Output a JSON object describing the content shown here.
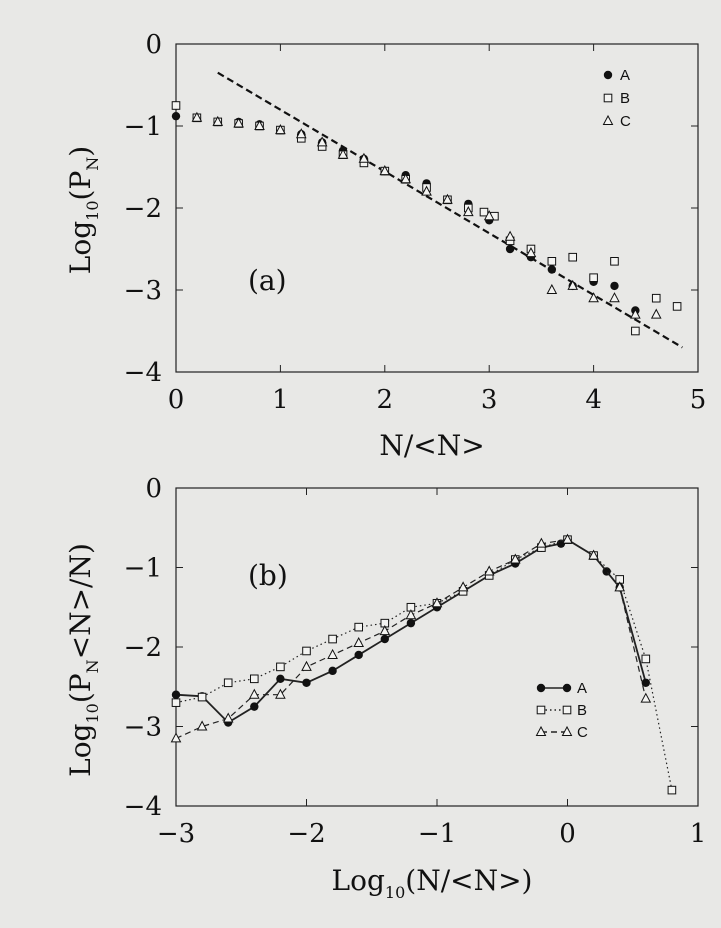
{
  "colors": {
    "background": "#e8e8e6",
    "ink": "#111111"
  },
  "chart_data": [
    {
      "type": "scatter",
      "panel_label": "(a)",
      "xlabel": {
        "main": "N/<N>"
      },
      "ylabel": {
        "pre": "Log",
        "sub1": "10",
        "mid": "(P",
        "sub2": "N",
        "post": ")"
      },
      "xlim": [
        0,
        5
      ],
      "ylim": [
        -4,
        0
      ],
      "xticks": [
        "0",
        "1",
        "2",
        "3",
        "4",
        "5"
      ],
      "yticks": [
        "0",
        "−1",
        "−2",
        "−3",
        "−4"
      ],
      "legend_position": "top-right",
      "series": [
        {
          "name": "A",
          "marker": "circle-filled",
          "points": [
            [
              0,
              -0.88
            ],
            [
              0.2,
              -0.9
            ],
            [
              0.4,
              -0.95
            ],
            [
              0.6,
              -0.95
            ],
            [
              0.8,
              -0.98
            ],
            [
              1.0,
              -1.05
            ],
            [
              1.2,
              -1.1
            ],
            [
              1.4,
              -1.2
            ],
            [
              1.6,
              -1.3
            ],
            [
              1.8,
              -1.4
            ],
            [
              2.0,
              -1.55
            ],
            [
              2.2,
              -1.6
            ],
            [
              2.4,
              -1.7
            ],
            [
              2.6,
              -1.9
            ],
            [
              2.8,
              -1.95
            ],
            [
              3.0,
              -2.15
            ],
            [
              3.2,
              -2.5
            ],
            [
              3.4,
              -2.6
            ],
            [
              3.6,
              -2.75
            ],
            [
              3.8,
              -2.95
            ],
            [
              4.0,
              -2.9
            ],
            [
              4.2,
              -2.95
            ],
            [
              4.4,
              -3.25
            ]
          ]
        },
        {
          "name": "B",
          "marker": "square-open",
          "points": [
            [
              0,
              -0.75
            ],
            [
              0.2,
              -0.9
            ],
            [
              0.4,
              -0.95
            ],
            [
              0.6,
              -0.97
            ],
            [
              0.8,
              -1.0
            ],
            [
              1.0,
              -1.05
            ],
            [
              1.2,
              -1.15
            ],
            [
              1.4,
              -1.25
            ],
            [
              1.6,
              -1.35
            ],
            [
              1.8,
              -1.45
            ],
            [
              2.0,
              -1.55
            ],
            [
              2.2,
              -1.65
            ],
            [
              2.4,
              -1.75
            ],
            [
              2.6,
              -1.9
            ],
            [
              2.8,
              -2.0
            ],
            [
              2.95,
              -2.05
            ],
            [
              3.05,
              -2.1
            ],
            [
              3.2,
              -2.4
            ],
            [
              3.4,
              -2.5
            ],
            [
              3.6,
              -2.65
            ],
            [
              3.8,
              -2.6
            ],
            [
              4.0,
              -2.85
            ],
            [
              4.2,
              -2.65
            ],
            [
              4.4,
              -3.5
            ],
            [
              4.6,
              -3.1
            ],
            [
              4.8,
              -3.2
            ]
          ]
        },
        {
          "name": "C",
          "marker": "triangle-open",
          "points": [
            [
              0.2,
              -0.9
            ],
            [
              0.4,
              -0.95
            ],
            [
              0.6,
              -0.97
            ],
            [
              0.8,
              -1.0
            ],
            [
              1.0,
              -1.05
            ],
            [
              1.2,
              -1.1
            ],
            [
              1.4,
              -1.2
            ],
            [
              1.6,
              -1.35
            ],
            [
              1.8,
              -1.4
            ],
            [
              2.0,
              -1.55
            ],
            [
              2.2,
              -1.65
            ],
            [
              2.4,
              -1.8
            ],
            [
              2.6,
              -1.9
            ],
            [
              2.8,
              -2.05
            ],
            [
              3.0,
              -2.1
            ],
            [
              3.2,
              -2.35
            ],
            [
              3.4,
              -2.55
            ],
            [
              3.6,
              -3.0
            ],
            [
              3.8,
              -2.95
            ],
            [
              4.0,
              -3.1
            ],
            [
              4.2,
              -3.1
            ],
            [
              4.4,
              -3.3
            ],
            [
              4.6,
              -3.3
            ]
          ]
        }
      ],
      "fit_line": {
        "style": "dashed",
        "points": [
          [
            0.4,
            -0.35
          ],
          [
            4.85,
            -3.7
          ]
        ]
      }
    },
    {
      "type": "line",
      "panel_label": "(b)",
      "xlabel": {
        "pre": "Log",
        "sub1": "10",
        "post": "(N/<N>)"
      },
      "ylabel": {
        "pre": "Log",
        "sub1": "10",
        "mid": "(P",
        "sub2": "N",
        "post": "<N>/N)"
      },
      "xlim": [
        -3,
        1
      ],
      "ylim": [
        -4,
        0
      ],
      "xticks": [
        "−3",
        "−2",
        "−1",
        "0",
        "1"
      ],
      "yticks": [
        "0",
        "−1",
        "−2",
        "−3",
        "−4"
      ],
      "legend_position": "right",
      "series": [
        {
          "name": "A",
          "marker": "circle-filled",
          "line": "solid",
          "points": [
            [
              -3.0,
              -2.6
            ],
            [
              -2.8,
              -2.62
            ],
            [
              -2.6,
              -2.95
            ],
            [
              -2.4,
              -2.75
            ],
            [
              -2.2,
              -2.4
            ],
            [
              -2.0,
              -2.45
            ],
            [
              -1.8,
              -2.3
            ],
            [
              -1.6,
              -2.1
            ],
            [
              -1.4,
              -1.9
            ],
            [
              -1.2,
              -1.7
            ],
            [
              -1.0,
              -1.5
            ],
            [
              -0.8,
              -1.3
            ],
            [
              -0.6,
              -1.1
            ],
            [
              -0.4,
              -0.95
            ],
            [
              -0.2,
              -0.75
            ],
            [
              -0.05,
              -0.7
            ],
            [
              0.0,
              -0.65
            ],
            [
              0.2,
              -0.85
            ],
            [
              0.3,
              -1.05
            ],
            [
              0.4,
              -1.25
            ],
            [
              0.6,
              -2.45
            ]
          ]
        },
        {
          "name": "B",
          "marker": "square-open",
          "line": "dotted",
          "points": [
            [
              -3.0,
              -2.7
            ],
            [
              -2.8,
              -2.63
            ],
            [
              -2.6,
              -2.45
            ],
            [
              -2.4,
              -2.4
            ],
            [
              -2.2,
              -2.25
            ],
            [
              -2.0,
              -2.05
            ],
            [
              -1.8,
              -1.9
            ],
            [
              -1.6,
              -1.75
            ],
            [
              -1.4,
              -1.7
            ],
            [
              -1.2,
              -1.5
            ],
            [
              -1.0,
              -1.45
            ],
            [
              -0.8,
              -1.3
            ],
            [
              -0.6,
              -1.1
            ],
            [
              -0.4,
              -0.9
            ],
            [
              -0.2,
              -0.75
            ],
            [
              0.0,
              -0.65
            ],
            [
              0.2,
              -0.85
            ],
            [
              0.4,
              -1.15
            ],
            [
              0.6,
              -2.15
            ],
            [
              0.8,
              -3.8
            ]
          ]
        },
        {
          "name": "C",
          "marker": "triangle-open",
          "line": "dashed",
          "points": [
            [
              -3.0,
              -3.15
            ],
            [
              -2.8,
              -3.0
            ],
            [
              -2.6,
              -2.9
            ],
            [
              -2.4,
              -2.6
            ],
            [
              -2.2,
              -2.6
            ],
            [
              -2.0,
              -2.25
            ],
            [
              -1.8,
              -2.1
            ],
            [
              -1.6,
              -1.95
            ],
            [
              -1.4,
              -1.8
            ],
            [
              -1.2,
              -1.6
            ],
            [
              -1.0,
              -1.45
            ],
            [
              -0.8,
              -1.25
            ],
            [
              -0.6,
              -1.05
            ],
            [
              -0.4,
              -0.9
            ],
            [
              -0.2,
              -0.7
            ],
            [
              0.0,
              -0.65
            ],
            [
              0.2,
              -0.85
            ],
            [
              0.4,
              -1.25
            ],
            [
              0.6,
              -2.65
            ]
          ]
        }
      ]
    }
  ]
}
